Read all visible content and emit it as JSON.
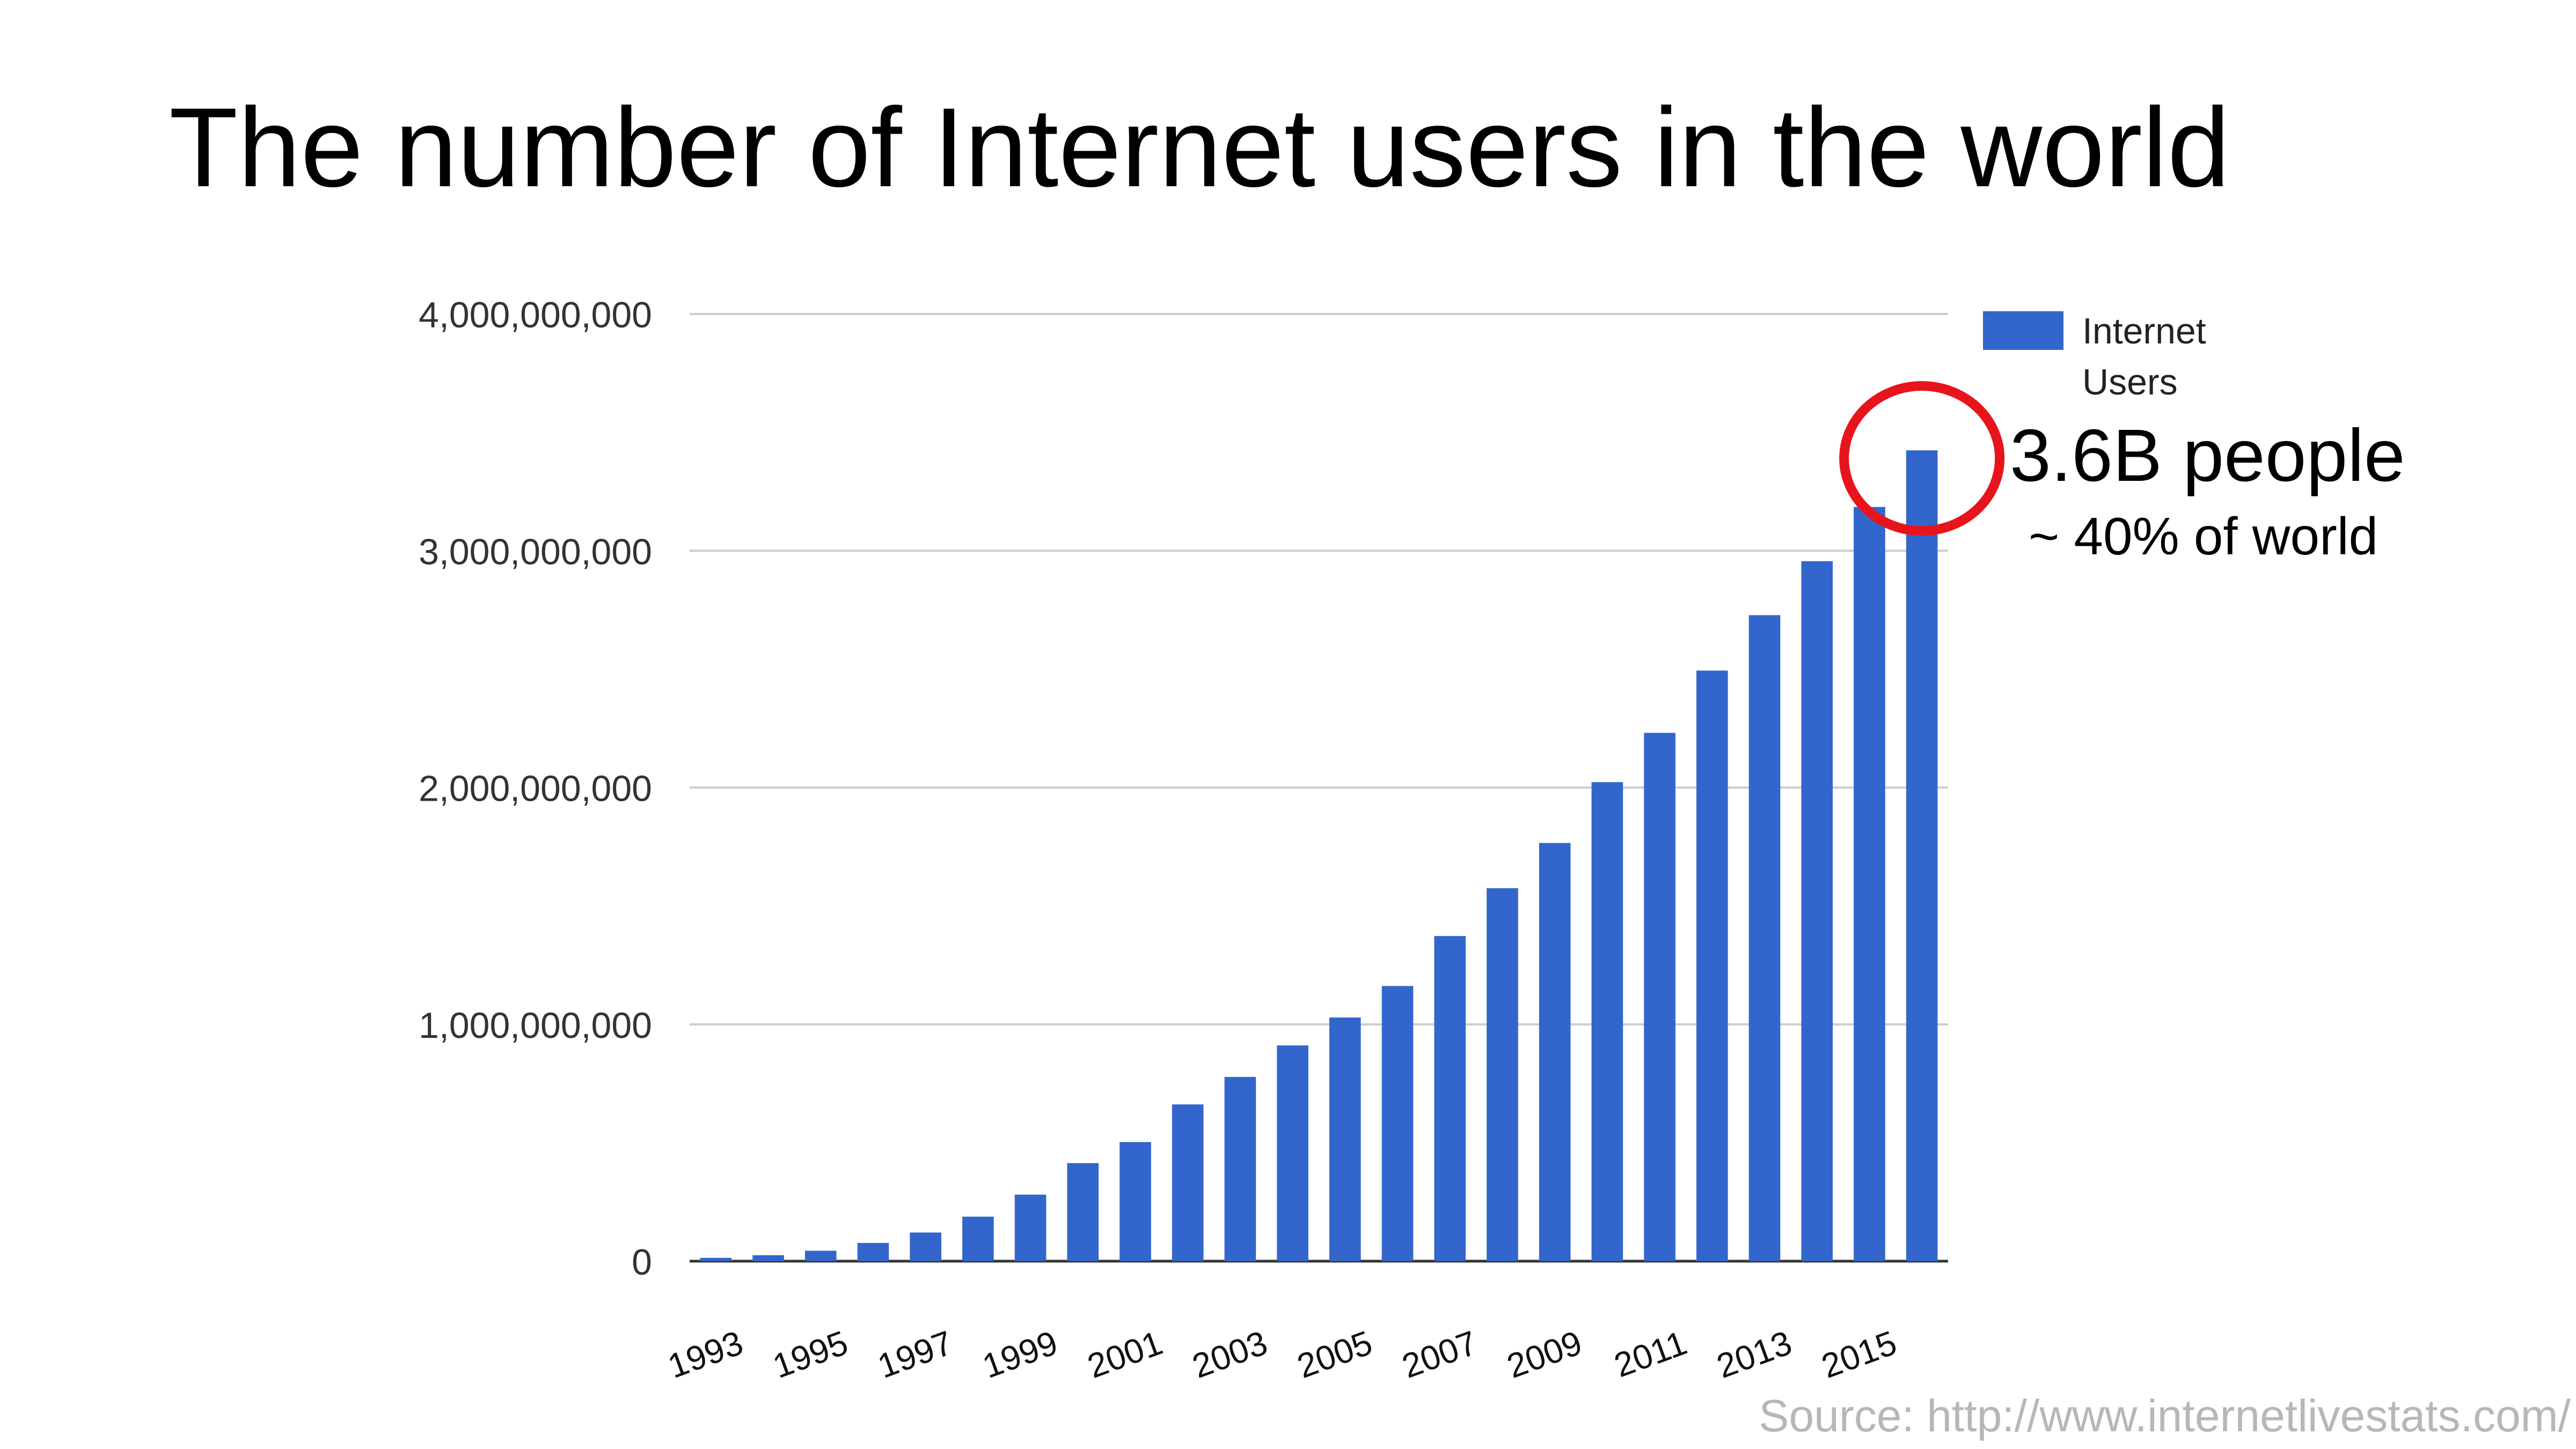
{
  "page": {
    "title": "The number of Internet users in the world",
    "annotation_main": "3.6B people",
    "annotation_sub": "~ 40% of world",
    "source": "Source: http://www.internetlivestats.com/"
  },
  "colors": {
    "bar": "#3366cc",
    "highlight_circle": "#e8141b",
    "gridline": "#cccccc",
    "axis_text": "#333333",
    "source_text": "#b7b7b7"
  },
  "chart_data": {
    "type": "bar",
    "title": "",
    "xlabel": "",
    "ylabel": "",
    "categories": [
      "1993",
      "1994",
      "1995",
      "1996",
      "1997",
      "1998",
      "1999",
      "2000",
      "2001",
      "2002",
      "2003",
      "2004",
      "2005",
      "2006",
      "2007",
      "2008",
      "2009",
      "2010",
      "2011",
      "2012",
      "2013",
      "2014",
      "2015",
      "2016"
    ],
    "x_tick_labels": [
      "1993",
      "1995",
      "1997",
      "1999",
      "2001",
      "2003",
      "2005",
      "2007",
      "2009",
      "2011",
      "2013",
      "2015"
    ],
    "series": [
      {
        "name": "Internet Users",
        "values": [
          14000000,
          25000000,
          44000000,
          77000000,
          121000000,
          188000000,
          281000000,
          414000000,
          503000000,
          662000000,
          778000000,
          911000000,
          1029000000,
          1162000000,
          1373000000,
          1575000000,
          1766000000,
          2023000000,
          2231000000,
          2494000000,
          2728000000,
          2956000000,
          3185000000,
          3424000000
        ]
      }
    ],
    "y_tick_labels": [
      "0",
      "1,000,000,000",
      "2,000,000,000",
      "3,000,000,000",
      "4,000,000,000"
    ],
    "y_ticks": [
      0,
      1000000000,
      2000000000,
      3000000000,
      4000000000
    ],
    "ylim": [
      0,
      4000000000
    ],
    "legend": {
      "position": "right",
      "labels": [
        "Internet",
        "Users"
      ]
    },
    "grid": true
  }
}
